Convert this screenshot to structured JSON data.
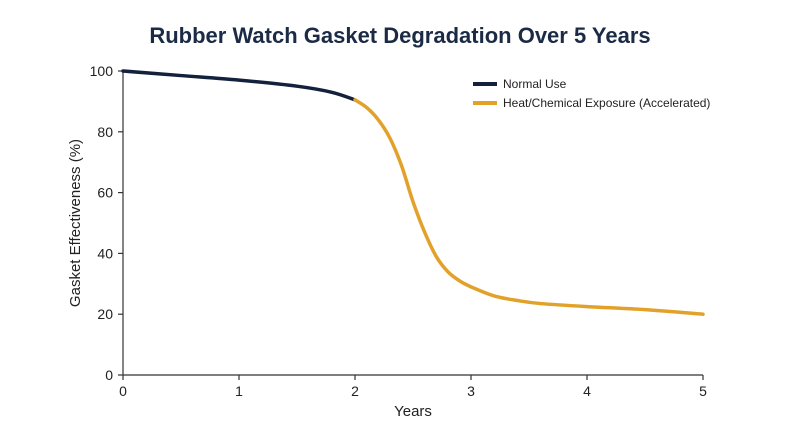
{
  "chart_data": {
    "type": "line",
    "title": "Rubber Watch Gasket Degradation Over 5 Years",
    "xlabel": "Years",
    "ylabel": "Gasket Effectiveness (%)",
    "xlim": [
      0,
      5
    ],
    "ylim": [
      0,
      100
    ],
    "xticks": [
      "0",
      "1",
      "2",
      "3",
      "4",
      "5"
    ],
    "yticks": [
      "0",
      "20",
      "40",
      "60",
      "80",
      "100"
    ],
    "grid": false,
    "legend_position": "top-right",
    "series": [
      {
        "name": "Normal Use",
        "color": "#13213d",
        "x": [
          0,
          0.5,
          1.0,
          1.5,
          1.8,
          2.0
        ],
        "y": [
          100,
          98.5,
          97,
          95,
          93,
          90.5
        ]
      },
      {
        "name": "Heat/Chemical Exposure (Accelerated)",
        "color": "#e2a22a",
        "x": [
          2.0,
          2.1,
          2.2,
          2.3,
          2.4,
          2.5,
          2.6,
          2.7,
          2.8,
          2.9,
          3.0,
          3.2,
          3.4,
          3.6,
          4.0,
          4.5,
          5.0
        ],
        "y": [
          90.5,
          88,
          84,
          78,
          69,
          57,
          47,
          39,
          34,
          31,
          29,
          26,
          24.5,
          23.5,
          22.5,
          21.5,
          20
        ]
      }
    ]
  }
}
